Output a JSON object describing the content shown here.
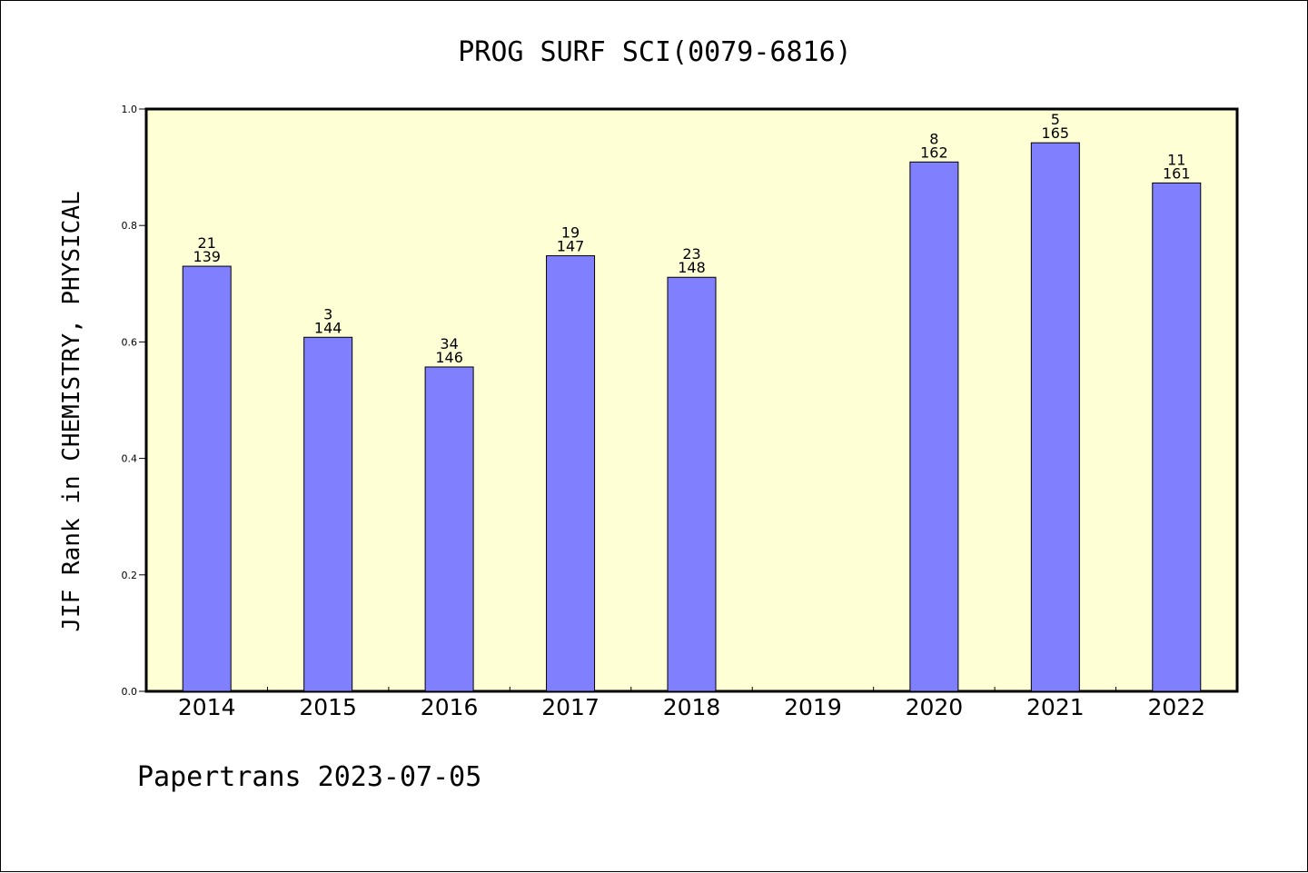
{
  "chart_data": {
    "type": "bar",
    "title": "PROG SURF SCI(0079-6816)",
    "ylabel": "JIF Rank in CHEMISTRY, PHYSICAL",
    "xlabel": "",
    "ylim": [
      0,
      1.0
    ],
    "yticks": [
      "0.0",
      "0.2",
      "0.4",
      "0.6",
      "0.8",
      "1.0"
    ],
    "ytick_values": [
      0.0,
      0.2,
      0.4,
      0.6,
      0.8,
      1.0
    ],
    "categories": [
      "2014",
      "2015",
      "2016",
      "2017",
      "2018",
      "2019",
      "2020",
      "2021",
      "2022"
    ],
    "values": [
      0.73,
      0.608,
      0.557,
      0.748,
      0.711,
      null,
      0.909,
      0.942,
      0.873
    ],
    "rank_labels": [
      "21",
      "3",
      "34",
      "19",
      "23",
      "",
      "8",
      "5",
      "11"
    ],
    "total_labels": [
      "139",
      "144",
      "146",
      "147",
      "148",
      "",
      "162",
      "165",
      "161"
    ],
    "grid": false,
    "colors": {
      "plot_background": "#ffffd5",
      "bar_fill": "#8080ff",
      "bar_stroke": "#000000"
    }
  },
  "footer": {
    "text": "Papertrans 2023-07-05"
  }
}
